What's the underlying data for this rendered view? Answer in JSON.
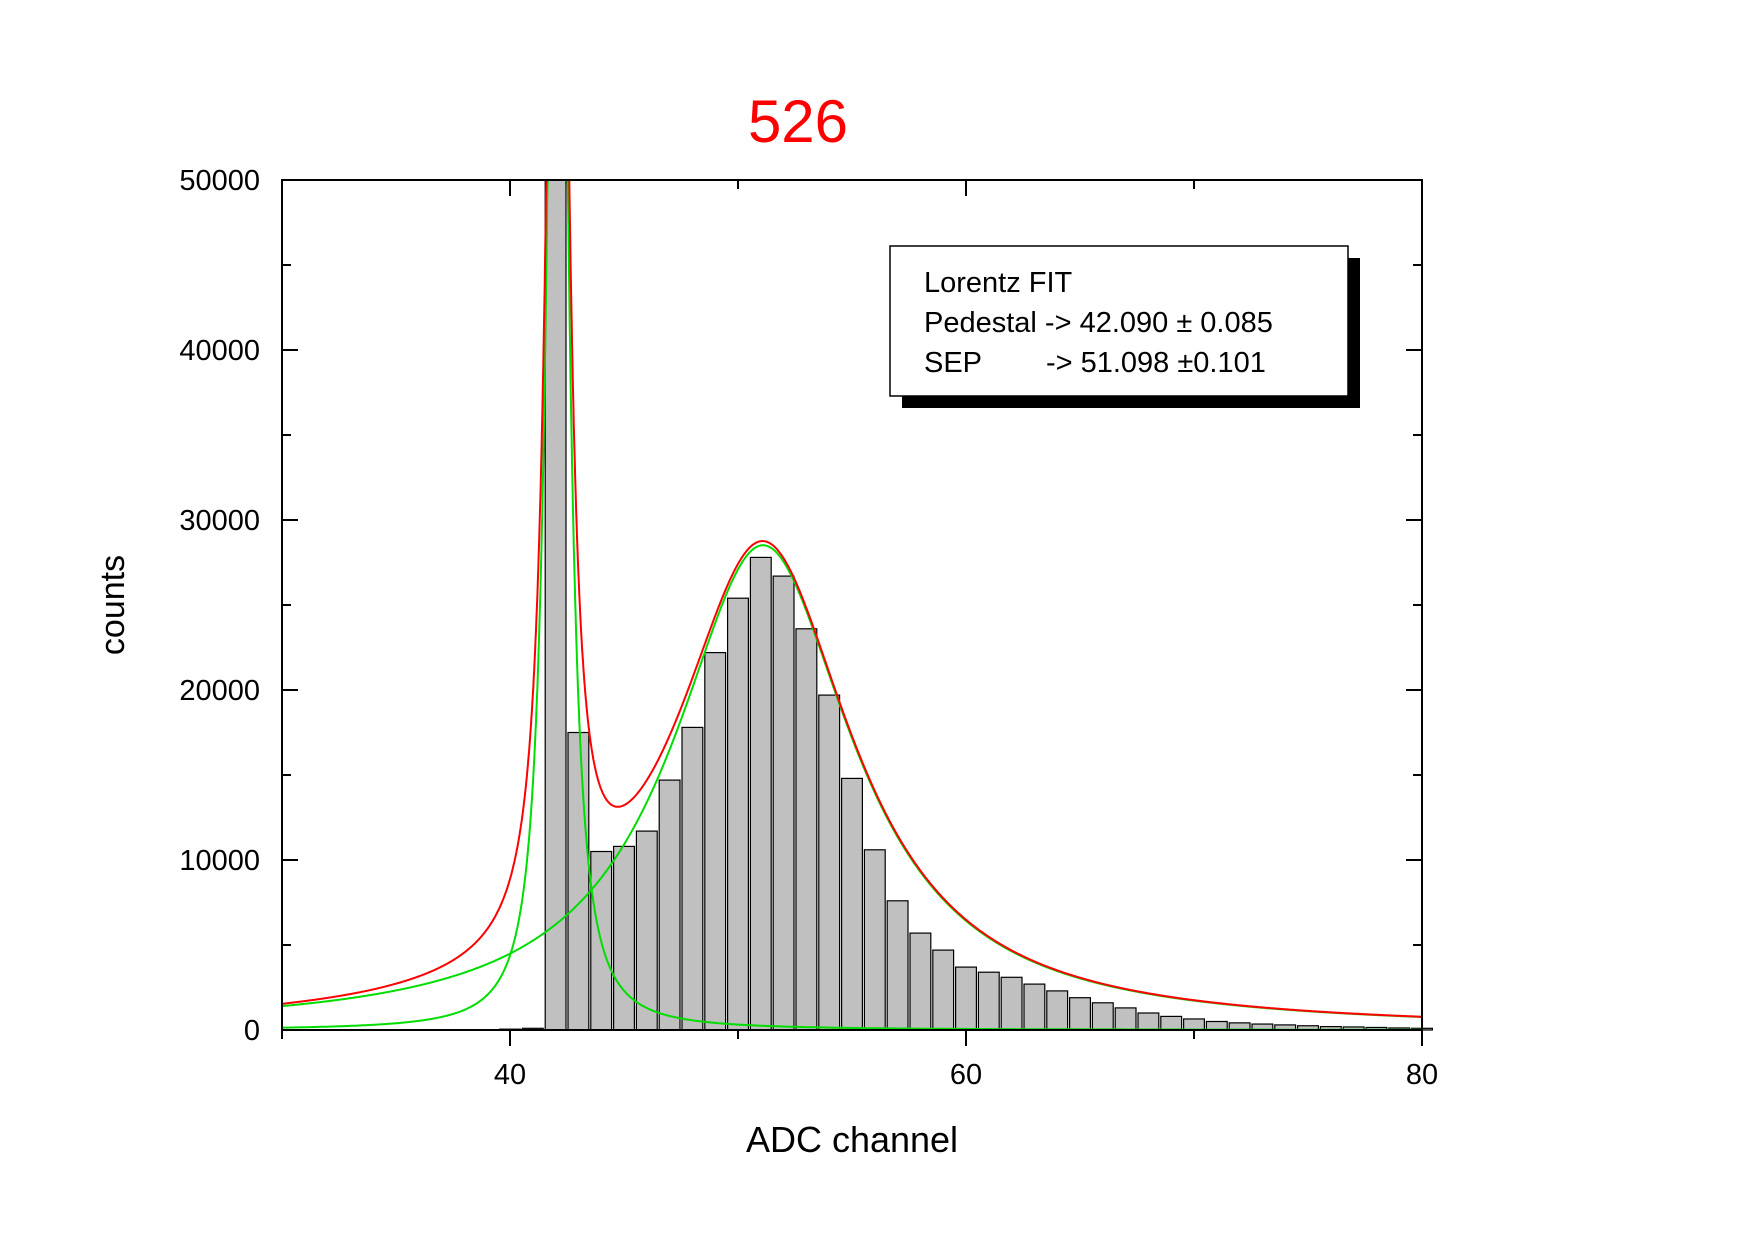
{
  "chart_data": {
    "type": "bar",
    "title": "526",
    "title_color": "#ff0000",
    "xlabel": "ADC channel",
    "ylabel": "counts",
    "xlim": [
      30,
      80
    ],
    "ylim": [
      0,
      50000
    ],
    "x_ticks": [
      40,
      60,
      80
    ],
    "y_ticks": [
      0,
      10000,
      20000,
      30000,
      40000,
      50000
    ],
    "grid": false,
    "bar_color": "#c0c0c0",
    "bar_edge_color": "#000000",
    "histogram": {
      "bin_width": 1,
      "bin_centers": [
        40,
        41,
        42,
        43,
        44,
        45,
        46,
        47,
        48,
        49,
        50,
        51,
        52,
        53,
        54,
        55,
        56,
        57,
        58,
        59,
        60,
        61,
        62,
        63,
        64,
        65,
        66,
        67,
        68,
        69,
        70,
        71,
        72,
        73,
        74,
        75,
        76,
        77,
        78,
        79,
        80
      ],
      "counts": [
        50,
        100,
        50000,
        17500,
        10500,
        10800,
        11700,
        14700,
        17800,
        22200,
        25400,
        27800,
        26700,
        23600,
        19700,
        14800,
        10600,
        7600,
        5700,
        4700,
        3700,
        3400,
        3100,
        2700,
        2300,
        1900,
        1600,
        1300,
        1000,
        800,
        650,
        500,
        420,
        350,
        300,
        250,
        200,
        180,
        150,
        120,
        100
      ]
    },
    "fits": [
      {
        "name": "Lorentz FIT (sum)",
        "color": "#ff0000",
        "function": "lorentz_sum",
        "components": [
          "pedestal",
          "sep"
        ]
      },
      {
        "name": "pedestal",
        "color": "#00dd00",
        "function": "lorentz",
        "center": 42.09,
        "fwhm": 0.9,
        "area": 140000
      },
      {
        "name": "sep",
        "color": "#00dd00",
        "function": "lorentz",
        "center": 51.098,
        "fwhm": 9.6,
        "area": 430000
      }
    ],
    "legend": {
      "placement": "top-right",
      "lines": [
        "Lorentz FIT",
        "Pedestal -> 42.090 ± 0.085",
        "SEP        -> 51.098 ±0.101"
      ]
    }
  }
}
